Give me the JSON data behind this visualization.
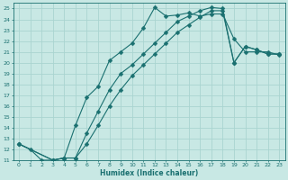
{
  "xlabel": "Humidex (Indice chaleur)",
  "xlim": [
    -0.5,
    23.5
  ],
  "ylim": [
    11,
    25.5
  ],
  "xticks": [
    0,
    1,
    2,
    3,
    4,
    5,
    6,
    7,
    8,
    9,
    10,
    11,
    12,
    13,
    14,
    15,
    16,
    17,
    18,
    19,
    20,
    21,
    22,
    23
  ],
  "yticks": [
    11,
    12,
    13,
    14,
    15,
    16,
    17,
    18,
    19,
    20,
    21,
    22,
    23,
    24,
    25
  ],
  "bg_color": "#c8e8e4",
  "grid_color": "#aad4d0",
  "line_color": "#1a7070",
  "line1_x": [
    0,
    1,
    2,
    3,
    4,
    5,
    6,
    7,
    8,
    9,
    10,
    11,
    12,
    13,
    14,
    15,
    16,
    17,
    18,
    19,
    20,
    21,
    22,
    23
  ],
  "line1_y": [
    12.5,
    12.0,
    11.0,
    11.0,
    11.2,
    14.2,
    16.8,
    17.8,
    20.2,
    21.0,
    21.8,
    23.2,
    25.1,
    24.3,
    24.4,
    24.6,
    24.3,
    24.5,
    24.5,
    22.2,
    21.0,
    21.0,
    21.0,
    20.7
  ],
  "line2_x": [
    0,
    3,
    4,
    5,
    6,
    7,
    8,
    9,
    10,
    11,
    12,
    13,
    14,
    15,
    16,
    17,
    18,
    19,
    20,
    21,
    22,
    23
  ],
  "line2_y": [
    12.5,
    11.0,
    11.2,
    11.2,
    13.5,
    15.5,
    17.5,
    19.0,
    19.8,
    20.8,
    21.8,
    22.8,
    23.8,
    24.3,
    24.8,
    25.1,
    25.0,
    20.0,
    21.5,
    21.2,
    20.8,
    20.8
  ],
  "line3_x": [
    0,
    3,
    4,
    5,
    6,
    7,
    8,
    9,
    10,
    11,
    12,
    13,
    14,
    15,
    16,
    17,
    18,
    19,
    20,
    21,
    22,
    23
  ],
  "line3_y": [
    12.5,
    11.0,
    11.2,
    11.2,
    12.5,
    14.2,
    16.0,
    17.5,
    18.8,
    19.8,
    20.8,
    21.8,
    22.8,
    23.5,
    24.2,
    24.8,
    24.8,
    20.0,
    21.5,
    21.2,
    20.8,
    20.8
  ]
}
